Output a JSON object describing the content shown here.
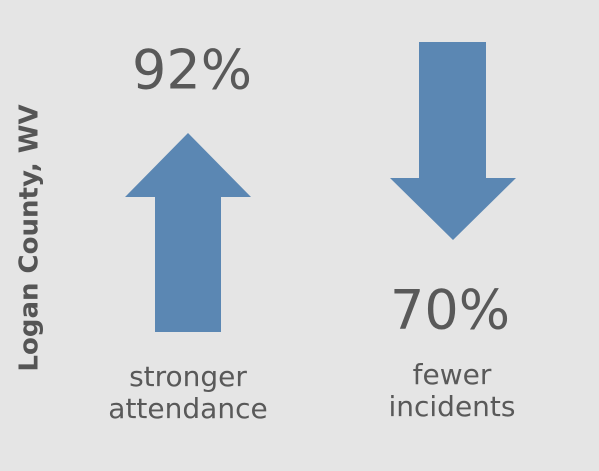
{
  "side_label": "Logan County, WV",
  "stats": [
    {
      "value": "92%",
      "label": [
        "stronger",
        "attendance"
      ]
    },
    {
      "value": "70%",
      "label": [
        "fewer",
        "incidents"
      ]
    }
  ]
}
